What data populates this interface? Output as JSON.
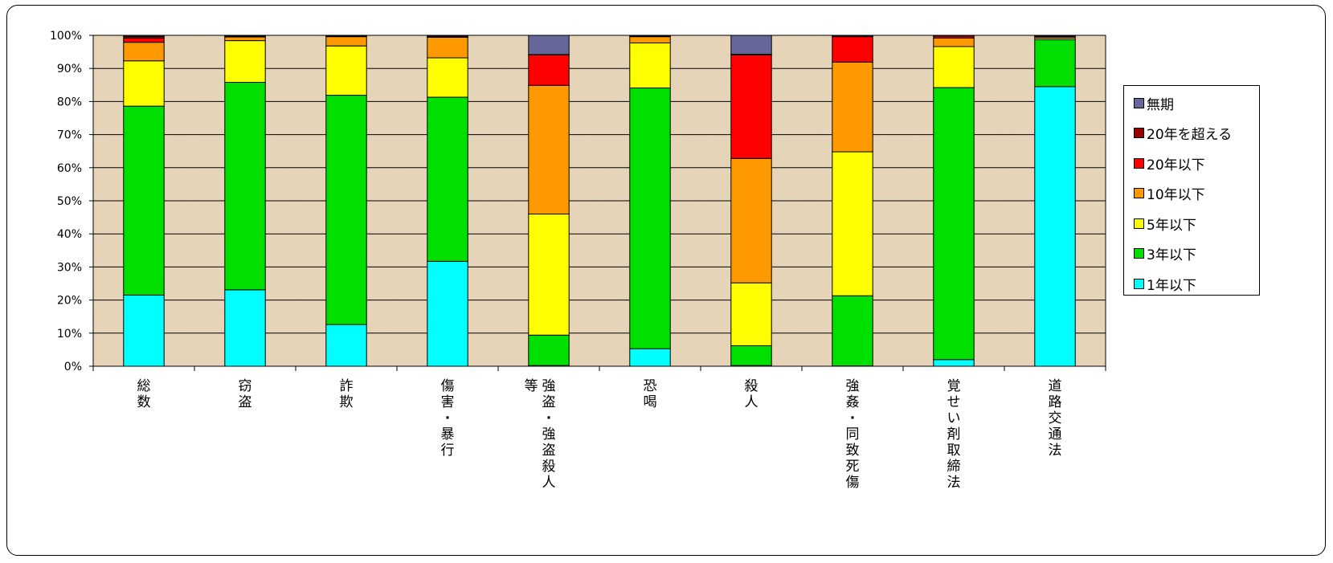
{
  "chart_data": {
    "type": "bar",
    "stacked": true,
    "orientation": "vertical",
    "ylim": [
      0,
      100
    ],
    "yticks": [
      "0%",
      "10%",
      "20%",
      "30%",
      "40%",
      "50%",
      "60%",
      "70%",
      "80%",
      "90%",
      "100%"
    ],
    "categories": [
      "総数",
      "窃盗",
      "詐欺",
      "傷害・暴行",
      "強盗・強盗殺人等",
      "恐喝",
      "殺人",
      "強姦・同致死傷",
      "覚せい剤取締法",
      "道路交通法"
    ],
    "series": [
      {
        "name": "1年以下",
        "color": "#00ffff",
        "values": [
          21.5,
          23.1,
          12.6,
          31.7,
          0.2,
          5.3,
          0.2,
          0.1,
          2.0,
          84.5
        ]
      },
      {
        "name": "3年以下",
        "color": "#00e000",
        "values": [
          57.1,
          62.7,
          69.3,
          49.6,
          9.2,
          78.8,
          6.0,
          21.2,
          82.2,
          14.2
        ]
      },
      {
        "name": "5年以下",
        "color": "#ffff00",
        "values": [
          13.7,
          12.6,
          14.9,
          11.9,
          36.6,
          13.6,
          19.0,
          43.5,
          12.4,
          0.5
        ]
      },
      {
        "name": "10年以下",
        "color": "#ff9900",
        "values": [
          5.6,
          1.1,
          2.8,
          6.2,
          38.9,
          1.9,
          37.6,
          27.1,
          2.6,
          0.4
        ]
      },
      {
        "name": "20年以下",
        "color": "#ff0000",
        "values": [
          1.3,
          0.2,
          0.2,
          0.3,
          9.2,
          0.2,
          31.3,
          7.7,
          0.6,
          0.2
        ]
      },
      {
        "name": "20年を超える",
        "color": "#990000",
        "values": [
          0.5,
          0.2,
          0.1,
          0.2,
          0.1,
          0.1,
          0.2,
          0.3,
          0.1,
          0.1
        ]
      },
      {
        "name": "無期",
        "color": "#666699",
        "values": [
          0.3,
          0.1,
          0.1,
          0.1,
          5.8,
          0.1,
          5.7,
          0.1,
          0.1,
          0.1
        ]
      }
    ],
    "legend_position": "right",
    "grid": true
  }
}
